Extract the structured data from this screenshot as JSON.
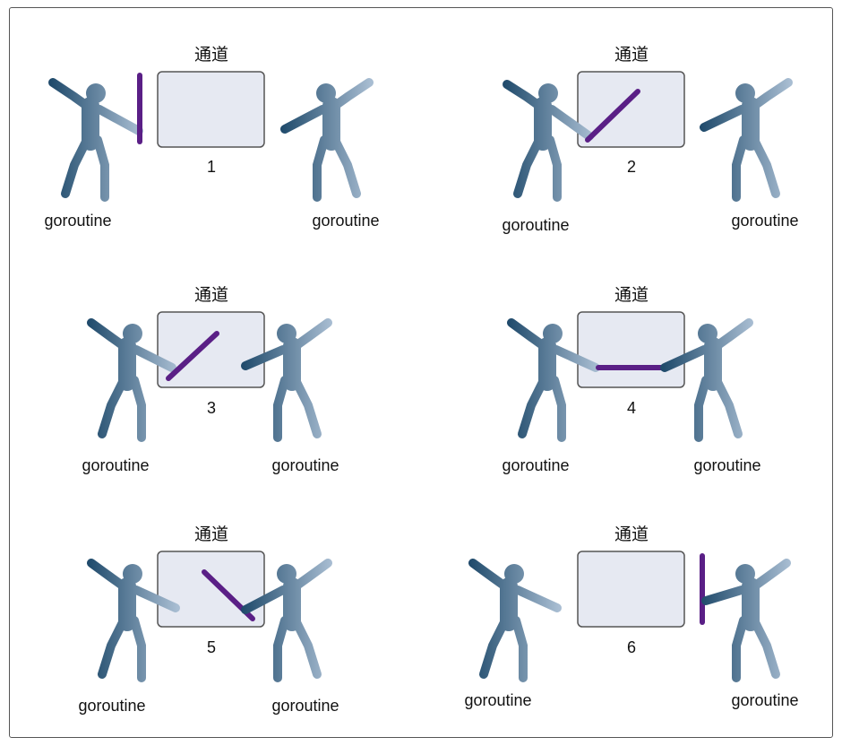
{
  "colors": {
    "figure_dark": "#1f4a6b",
    "figure_light": "#a8bdd2",
    "box_fill": "#e6e9f2",
    "box_stroke": "#555555",
    "baton": "#5a1f86"
  },
  "icons": {
    "person": "person-icon",
    "baton": "baton-icon"
  },
  "panels": [
    {
      "step": "1",
      "channel_label": "通道",
      "left_label": "goroutine",
      "right_label": "goroutine"
    },
    {
      "step": "2",
      "channel_label": "通道",
      "left_label": "goroutine",
      "right_label": "goroutine"
    },
    {
      "step": "3",
      "channel_label": "通道",
      "left_label": "goroutine",
      "right_label": "goroutine"
    },
    {
      "step": "4",
      "channel_label": "通道",
      "left_label": "goroutine",
      "right_label": "goroutine"
    },
    {
      "step": "5",
      "channel_label": "通道",
      "left_label": "goroutine",
      "right_label": "goroutine"
    },
    {
      "step": "6",
      "channel_label": "通道",
      "left_label": "goroutine",
      "right_label": "goroutine"
    }
  ]
}
